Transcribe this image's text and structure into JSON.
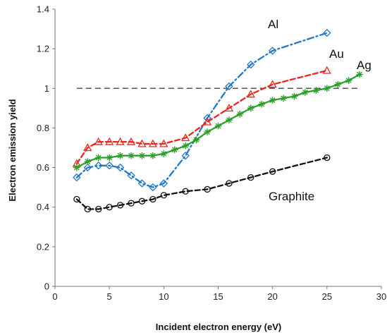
{
  "chart_data": {
    "type": "line",
    "title": "",
    "xlabel": "Incident electron energy (eV)",
    "ylabel": "Electron emission yield",
    "xlim": [
      0,
      30
    ],
    "ylim": [
      0,
      1.4
    ],
    "xticks": [
      "0",
      "5",
      "10",
      "15",
      "20",
      "25",
      "30"
    ],
    "yticks": [
      "0",
      "0.2",
      "0.4",
      "0.6",
      "0.8",
      "1",
      "1.2",
      "1.4"
    ],
    "grid": false,
    "legend": "none",
    "reference_line": {
      "y": 1.0,
      "style": "dashed",
      "color": "#555555"
    },
    "series": [
      {
        "name": "Al",
        "color": "#1f78c8",
        "line_style": "dashdot",
        "marker": "diamond",
        "points": [
          [
            2,
            0.55
          ],
          [
            3,
            0.6
          ],
          [
            4,
            0.61
          ],
          [
            5,
            0.61
          ],
          [
            6,
            0.6
          ],
          [
            7,
            0.56
          ],
          [
            8,
            0.52
          ],
          [
            9,
            0.5
          ],
          [
            10,
            0.52
          ],
          [
            12,
            0.66
          ],
          [
            14,
            0.85
          ],
          [
            16,
            1.01
          ],
          [
            18,
            1.12
          ],
          [
            20,
            1.19
          ],
          [
            25,
            1.28
          ]
        ]
      },
      {
        "name": "Au",
        "color": "#e8281e",
        "line_style": "dashed",
        "marker": "triangle",
        "points": [
          [
            2,
            0.62
          ],
          [
            3,
            0.7
          ],
          [
            4,
            0.73
          ],
          [
            5,
            0.73
          ],
          [
            6,
            0.73
          ],
          [
            7,
            0.73
          ],
          [
            8,
            0.72
          ],
          [
            9,
            0.72
          ],
          [
            10,
            0.72
          ],
          [
            12,
            0.75
          ],
          [
            14,
            0.83
          ],
          [
            16,
            0.9
          ],
          [
            18,
            0.97
          ],
          [
            20,
            1.02
          ],
          [
            25,
            1.09
          ]
        ]
      },
      {
        "name": "Ag",
        "color": "#2aa02a",
        "line_style": "solid",
        "marker": "star",
        "points": [
          [
            2,
            0.6
          ],
          [
            3,
            0.63
          ],
          [
            4,
            0.65
          ],
          [
            5,
            0.65
          ],
          [
            6,
            0.66
          ],
          [
            7,
            0.66
          ],
          [
            8,
            0.66
          ],
          [
            9,
            0.66
          ],
          [
            10,
            0.67
          ],
          [
            11,
            0.69
          ],
          [
            12,
            0.71
          ],
          [
            13,
            0.74
          ],
          [
            14,
            0.78
          ],
          [
            15,
            0.81
          ],
          [
            16,
            0.84
          ],
          [
            17,
            0.87
          ],
          [
            18,
            0.9
          ],
          [
            19,
            0.92
          ],
          [
            20,
            0.94
          ],
          [
            21,
            0.95
          ],
          [
            22,
            0.96
          ],
          [
            23,
            0.98
          ],
          [
            24,
            0.99
          ],
          [
            25,
            1.0
          ],
          [
            26,
            1.02
          ],
          [
            27,
            1.04
          ],
          [
            28,
            1.07
          ]
        ]
      },
      {
        "name": "Graphite",
        "color": "#111111",
        "line_style": "dashed",
        "marker": "circle",
        "points": [
          [
            2,
            0.44
          ],
          [
            3,
            0.39
          ],
          [
            4,
            0.39
          ],
          [
            5,
            0.4
          ],
          [
            6,
            0.41
          ],
          [
            7,
            0.42
          ],
          [
            8,
            0.43
          ],
          [
            9,
            0.44
          ],
          [
            10,
            0.46
          ],
          [
            12,
            0.48
          ],
          [
            14,
            0.49
          ],
          [
            16,
            0.52
          ],
          [
            18,
            0.55
          ],
          [
            20,
            0.58
          ],
          [
            25,
            0.65
          ]
        ]
      }
    ]
  }
}
